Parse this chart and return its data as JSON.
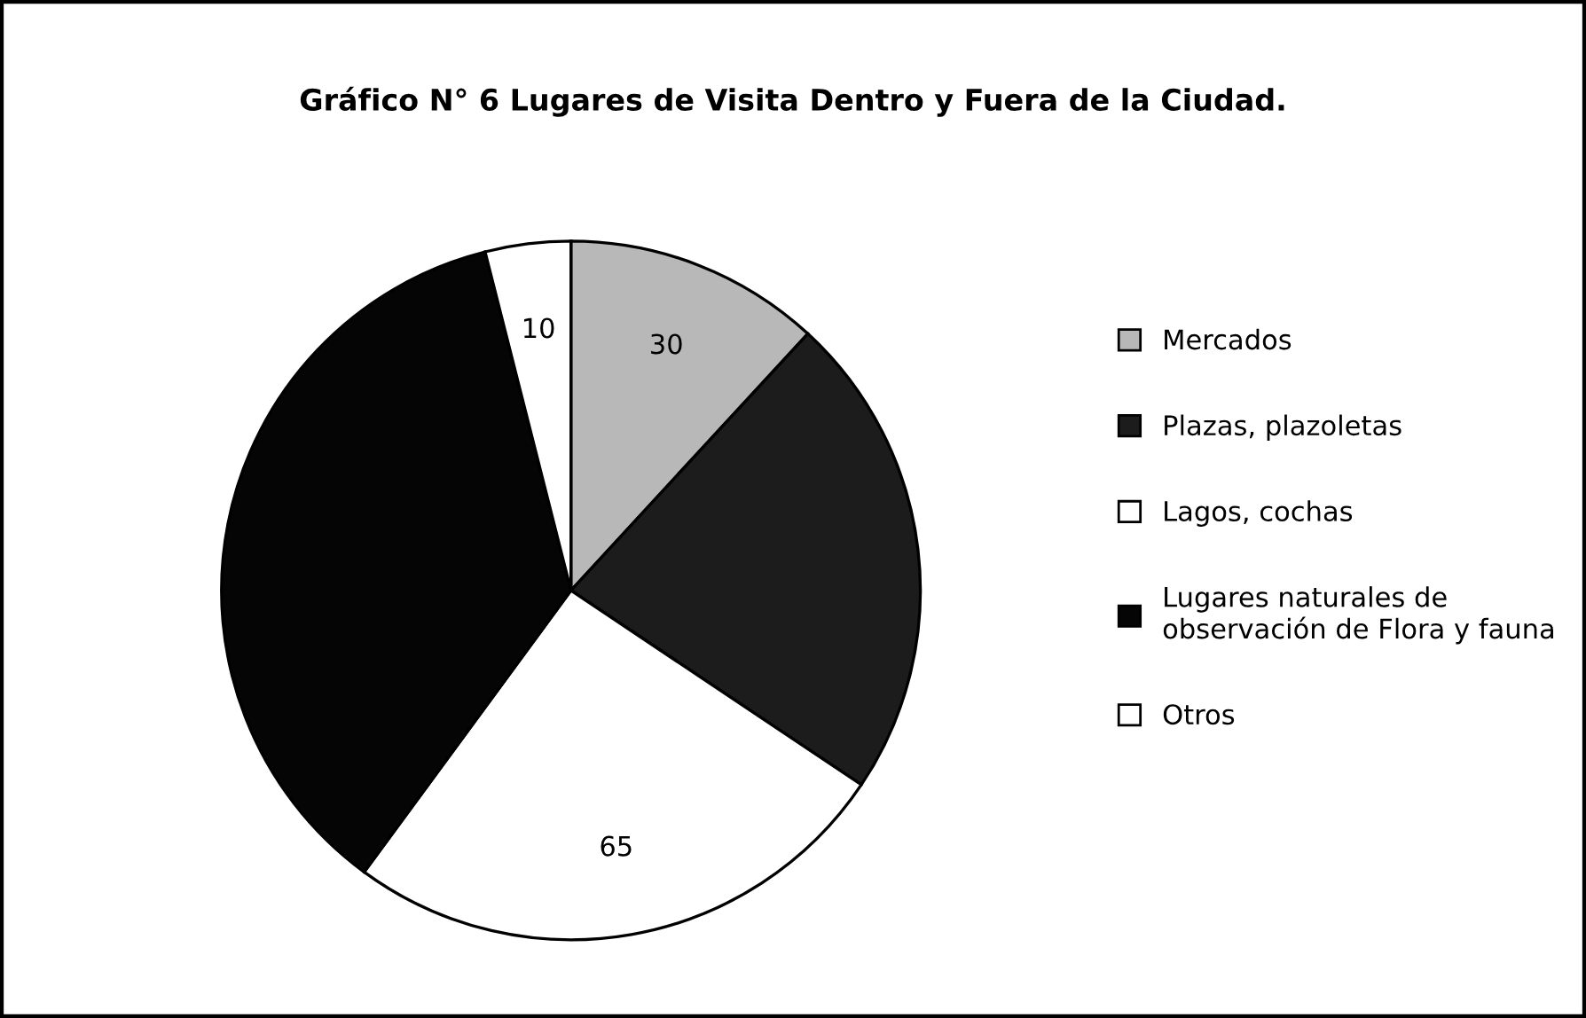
{
  "chart_data": {
    "type": "pie",
    "title": "Gráfico N° 6 Lugares de Visita Dentro y Fuera de la Ciudad.",
    "categories": [
      "Mercados",
      "Plazas, plazoletas",
      "Lagos, cochas",
      "Lugares naturales de observación de Flora y fauna",
      "Otros"
    ],
    "values": [
      30,
      57,
      65,
      91,
      10
    ],
    "value_labels": [
      "30",
      null,
      "65",
      null,
      "10"
    ],
    "colors": [
      "#b8b8b8",
      "#1c1c1c",
      "#ffffff",
      "#050505",
      "#ffffff"
    ],
    "legend": "right"
  }
}
